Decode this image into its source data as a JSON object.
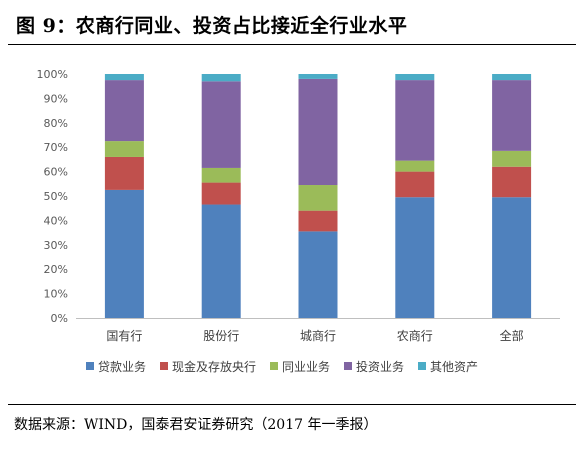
{
  "figure": {
    "title": "图 9：农商行同业、投资占比接近全行业水平",
    "source": "数据来源：WIND，国泰君安证券研究（2017 年一季报）"
  },
  "chart_data": {
    "type": "bar",
    "stacked": true,
    "categories": [
      "国有行",
      "股份行",
      "城商行",
      "农商行",
      "全部"
    ],
    "series": [
      {
        "name": "贷款业务",
        "color": "#4F81BD",
        "values": [
          52.5,
          46.5,
          35.5,
          49.5,
          49.5
        ]
      },
      {
        "name": "现金及存放央行",
        "color": "#C0504D",
        "values": [
          13.5,
          9.0,
          8.5,
          10.5,
          12.5
        ]
      },
      {
        "name": "同业业务",
        "color": "#9BBB59",
        "values": [
          6.5,
          6.0,
          10.5,
          4.5,
          6.5
        ]
      },
      {
        "name": "投资业务",
        "color": "#8064A2",
        "values": [
          25.0,
          35.5,
          43.5,
          33.0,
          29.0
        ]
      },
      {
        "name": "其他资产",
        "color": "#4BACC6",
        "values": [
          2.5,
          3.0,
          2.0,
          2.5,
          2.5
        ]
      }
    ],
    "y_ticks": [
      "0%",
      "10%",
      "20%",
      "30%",
      "40%",
      "50%",
      "60%",
      "70%",
      "80%",
      "90%",
      "100%"
    ],
    "ylim": [
      0,
      100
    ],
    "grid": false,
    "legend_position": "bottom"
  }
}
